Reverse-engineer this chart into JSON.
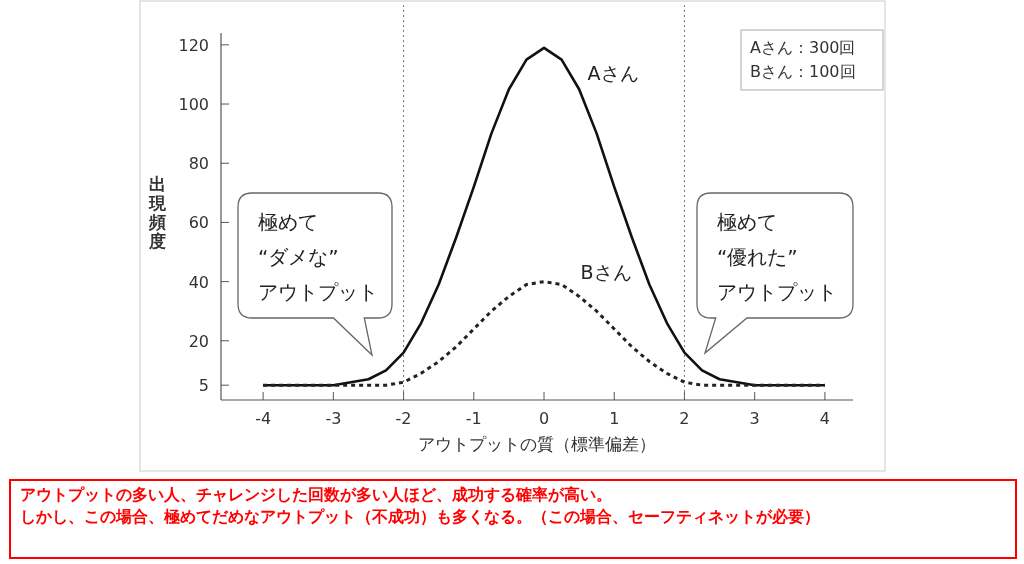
{
  "chart_data": {
    "type": "line",
    "xlabel": "アウトプットの質（標準偏差）",
    "ylabel": "出現頻度",
    "x": [
      -4,
      -3.75,
      -3.5,
      -3.25,
      -3,
      -2.75,
      -2.5,
      -2.25,
      -2,
      -1.75,
      -1.5,
      -1.25,
      -1,
      -0.75,
      -0.5,
      -0.25,
      0,
      0.25,
      0.5,
      0.75,
      1,
      1.25,
      1.5,
      1.75,
      2,
      2.25,
      2.5,
      2.75,
      3,
      3.25,
      3.5,
      3.75,
      4
    ],
    "series": [
      {
        "name": "Aさん",
        "color": "#111111",
        "line_style": "solid",
        "values": [
          5,
          5,
          5,
          5,
          5,
          6,
          7,
          10,
          16,
          26,
          39,
          55,
          72,
          90,
          105,
          115,
          119,
          115,
          105,
          90,
          72,
          55,
          39,
          26,
          16,
          10,
          7,
          6,
          5,
          5,
          5,
          5,
          5
        ]
      },
      {
        "name": "Bさん",
        "color": "#222222",
        "line_style": "dashed",
        "values": [
          5,
          5,
          5,
          5,
          5,
          5,
          5,
          5,
          6,
          9,
          13,
          18,
          24,
          30,
          35,
          39,
          40,
          39,
          35,
          30,
          24,
          18,
          13,
          9,
          6,
          5,
          5,
          5,
          5,
          5,
          5,
          5,
          5
        ]
      }
    ],
    "xlim": [
      -4.6,
      4.4
    ],
    "ylim": [
      0,
      124
    ],
    "xticks": [
      -4,
      -3,
      -2,
      -1,
      0,
      1,
      2,
      3,
      4
    ],
    "yticks": [
      5,
      20,
      40,
      60,
      80,
      100,
      120
    ],
    "ref_lines": [
      {
        "axis": "x",
        "value": -2,
        "color": "#777777",
        "line_style": "dotted"
      },
      {
        "axis": "x",
        "value": 2,
        "color": "#777777",
        "line_style": "dotted"
      }
    ],
    "grid": false,
    "legend": false,
    "marker": "none",
    "annotations": [
      "極めて\n“ダメな”\nアウトプット",
      "極めて\n“優れた”\nアウトプット",
      "Aさん：300回\nBさん：100回",
      "アウトプットの多い人、チャレンジした回数が多い人ほど、成功する確率が高い。",
      "しかし、この場合、極めてだめなアウトプット（不成功）も多くなる。（この場合、セーフティネットが必要）"
    ]
  }
}
